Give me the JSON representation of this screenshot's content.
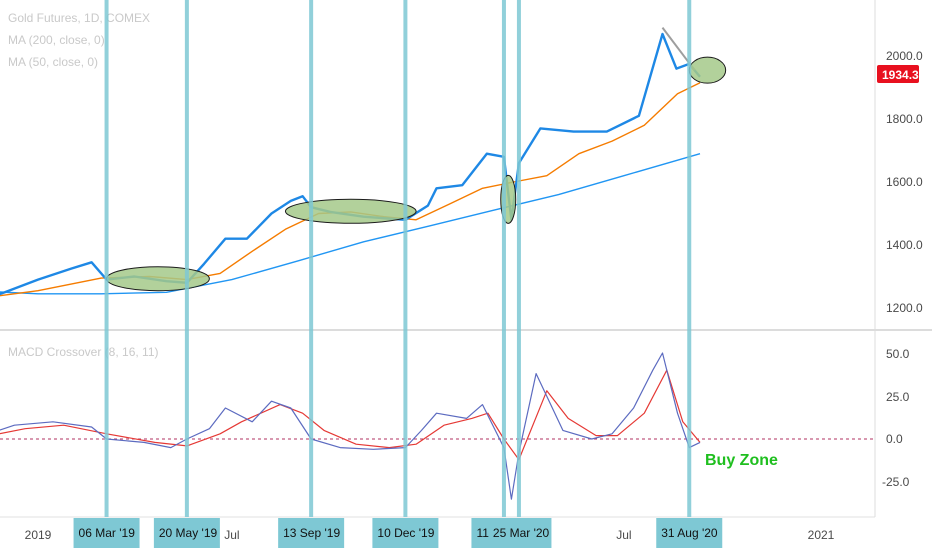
{
  "chart_data": [
    {
      "type": "line",
      "panel": "price",
      "legend": [
        "Gold Futures, 1D, COMEX",
        "MA (200, close, 0)",
        "MA (50, close, 0)"
      ],
      "yticks": [
        "2000.0",
        "1800.0",
        "1600.0",
        "1400.0",
        "1200.0"
      ],
      "ylim": [
        1150,
        2100
      ],
      "last_price": "1934.3",
      "series": [
        {
          "name": "Gold Futures, 1D, COMEX",
          "color": "#1e88e5",
          "x": [
            "2018-11-01",
            "2018-12-01",
            "2019-01-01",
            "2019-02-01",
            "2019-02-20",
            "2019-03-06",
            "2019-04-01",
            "2019-05-01",
            "2019-05-20",
            "2019-06-05",
            "2019-06-25",
            "2019-07-15",
            "2019-08-07",
            "2019-08-25",
            "2019-09-05",
            "2019-09-13",
            "2019-10-01",
            "2019-11-01",
            "2019-12-10",
            "2019-12-31",
            "2020-01-08",
            "2020-02-01",
            "2020-02-24",
            "2020-03-11",
            "2020-03-18",
            "2020-03-25",
            "2020-04-14",
            "2020-05-15",
            "2020-06-15",
            "2020-07-15",
            "2020-08-06",
            "2020-08-19",
            "2020-08-31",
            "2020-09-10"
          ],
          "values": [
            1215,
            1250,
            1290,
            1325,
            1345,
            1290,
            1300,
            1285,
            1280,
            1340,
            1420,
            1420,
            1500,
            1540,
            1555,
            1520,
            1505,
            1490,
            1480,
            1525,
            1580,
            1590,
            1690,
            1680,
            1480,
            1660,
            1770,
            1760,
            1760,
            1810,
            2070,
            1960,
            1975,
            1934
          ]
        },
        {
          "name": "MA (50, close, 0)",
          "color": "#f57c00",
          "x": [
            "2018-11-01",
            "2019-01-01",
            "2019-03-01",
            "2019-04-15",
            "2019-05-20",
            "2019-06-20",
            "2019-07-20",
            "2019-08-20",
            "2019-09-20",
            "2019-10-20",
            "2019-11-20",
            "2019-12-20",
            "2020-01-20",
            "2020-02-20",
            "2020-03-20",
            "2020-04-20",
            "2020-05-20",
            "2020-06-20",
            "2020-07-20",
            "2020-08-20",
            "2020-09-10"
          ],
          "values": [
            1228,
            1255,
            1295,
            1300,
            1290,
            1310,
            1380,
            1450,
            1500,
            1505,
            1490,
            1480,
            1530,
            1580,
            1600,
            1620,
            1690,
            1730,
            1780,
            1880,
            1915
          ]
        },
        {
          "name": "MA (200, close, 0)",
          "color": "#2196f3",
          "x": [
            "2018-11-01",
            "2019-01-01",
            "2019-03-01",
            "2019-05-01",
            "2019-07-01",
            "2019-09-01",
            "2019-11-01",
            "2020-01-01",
            "2020-03-01",
            "2020-05-01",
            "2020-07-01",
            "2020-09-10"
          ],
          "values": [
            1255,
            1245,
            1245,
            1250,
            1290,
            1350,
            1410,
            1460,
            1510,
            1560,
            1620,
            1690
          ]
        }
      ]
    },
    {
      "type": "line",
      "panel": "macd",
      "legend": [
        "MACD Crossover (8, 16, 11)"
      ],
      "yticks": [
        "50.0",
        "25.0",
        "0.0",
        "-25.0"
      ],
      "ylim": [
        -45,
        60
      ],
      "series": [
        {
          "color": "#5c6bc0",
          "x": [
            "2018-11-01",
            "2018-12-10",
            "2019-01-15",
            "2019-02-20",
            "2019-03-06",
            "2019-04-10",
            "2019-05-05",
            "2019-05-20",
            "2019-06-10",
            "2019-06-25",
            "2019-07-20",
            "2019-08-07",
            "2019-08-25",
            "2019-09-13",
            "2019-10-10",
            "2019-11-10",
            "2019-12-10",
            "2019-12-25",
            "2020-01-08",
            "2020-02-05",
            "2020-02-20",
            "2020-03-11",
            "2020-03-18",
            "2020-03-25",
            "2020-04-10",
            "2020-05-05",
            "2020-06-01",
            "2020-06-20",
            "2020-07-10",
            "2020-07-28",
            "2020-08-06",
            "2020-08-20",
            "2020-08-31",
            "2020-09-10"
          ],
          "values": [
            0,
            8,
            10,
            7,
            0,
            -2,
            -5,
            0,
            6,
            18,
            10,
            22,
            18,
            0,
            -5,
            -6,
            -5,
            5,
            15,
            12,
            20,
            -5,
            -35,
            -8,
            38,
            5,
            0,
            3,
            18,
            40,
            50,
            15,
            -5,
            -2
          ]
        },
        {
          "color": "#e53935",
          "x": [
            "2018-11-01",
            "2018-12-20",
            "2019-01-25",
            "2019-03-06",
            "2019-04-20",
            "2019-05-20",
            "2019-06-20",
            "2019-07-10",
            "2019-08-15",
            "2019-09-05",
            "2019-09-25",
            "2019-10-25",
            "2019-11-25",
            "2019-12-20",
            "2020-01-15",
            "2020-02-10",
            "2020-02-25",
            "2020-03-11",
            "2020-03-25",
            "2020-04-20",
            "2020-05-10",
            "2020-06-05",
            "2020-06-25",
            "2020-07-20",
            "2020-08-10",
            "2020-08-25",
            "2020-09-10"
          ],
          "values": [
            0,
            6,
            8,
            3,
            -2,
            -4,
            3,
            10,
            20,
            15,
            5,
            -3,
            -5,
            -3,
            8,
            12,
            15,
            0,
            -12,
            28,
            12,
            2,
            2,
            15,
            40,
            10,
            -2
          ]
        }
      ]
    }
  ],
  "x_axis": {
    "labels": [
      {
        "text": "2019",
        "date": "2019-01-01"
      },
      {
        "text": "Jul",
        "date": "2019-07-01"
      },
      {
        "text": "Jul",
        "date": "2020-07-01"
      },
      {
        "text": "2021",
        "date": "2021-01-01"
      }
    ]
  },
  "annotations": {
    "vlines": [
      {
        "date": "2019-03-06",
        "label": "06 Mar '19"
      },
      {
        "date": "2019-05-20",
        "label": "20 May '19"
      },
      {
        "date": "2019-09-13",
        "label": "13 Sep '19"
      },
      {
        "date": "2019-12-10",
        "label": "10 Dec '19"
      },
      {
        "date": "2020-03-11",
        "label": "11"
      },
      {
        "date": "2020-03-25",
        "label": "25 Mar '20"
      },
      {
        "date": "2020-08-31",
        "label": "31 Aug '20"
      }
    ],
    "buy_zone_label": "Buy Zone",
    "buy_zone_range": [
      -20,
      -5
    ]
  },
  "colors": {
    "vline": "#7ec8d4",
    "ellipse_fill": "#a5c98a",
    "buy_zone": "#7dff7d",
    "price_tag": "#e8101f"
  }
}
